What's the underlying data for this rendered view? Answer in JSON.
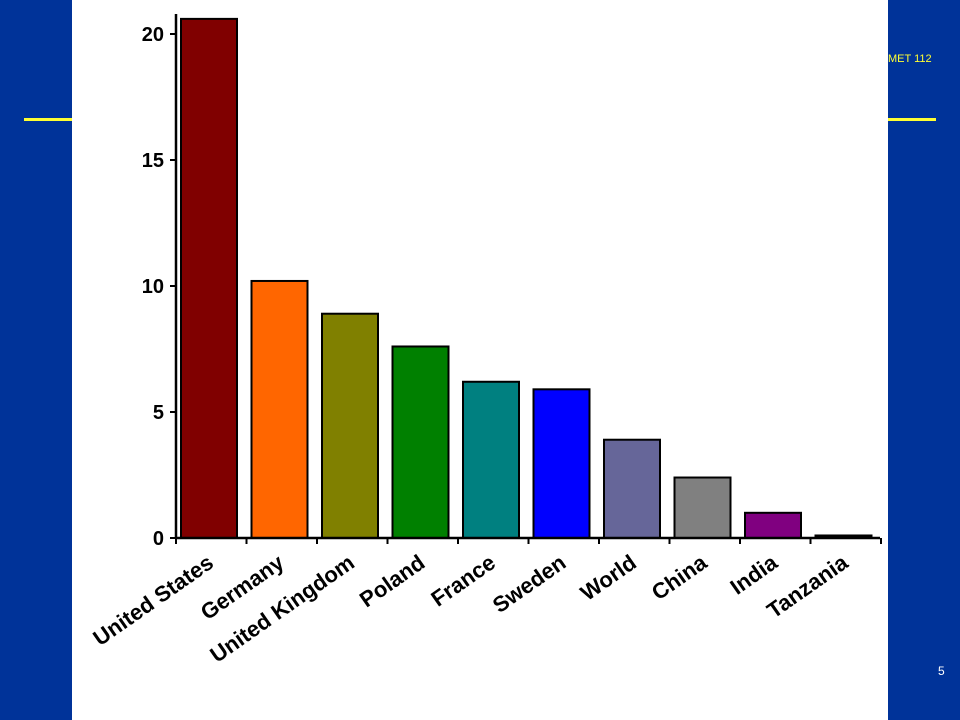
{
  "slide": {
    "course_code": "MET 112",
    "page_number": "5",
    "accent_color": "#FFFF33",
    "background_color": "#003399"
  },
  "chart_data": {
    "type": "bar",
    "title": "",
    "xlabel": "",
    "ylabel": "",
    "ylim": [
      0,
      20.5
    ],
    "yticks": [
      0,
      5,
      10,
      15,
      20
    ],
    "grid": false,
    "legend": "none",
    "categories": [
      "United States",
      "Germany",
      "United Kingdom",
      "Poland",
      "France",
      "Sweden",
      "World",
      "China",
      "India",
      "Tanzania"
    ],
    "values": [
      20.6,
      10.2,
      8.9,
      7.6,
      6.2,
      5.9,
      3.9,
      2.4,
      1.0,
      0.1
    ],
    "colors": [
      "#800000",
      "#FF6600",
      "#808000",
      "#008000",
      "#008080",
      "#0000FF",
      "#666699",
      "#808080",
      "#800080",
      "#000000"
    ]
  }
}
